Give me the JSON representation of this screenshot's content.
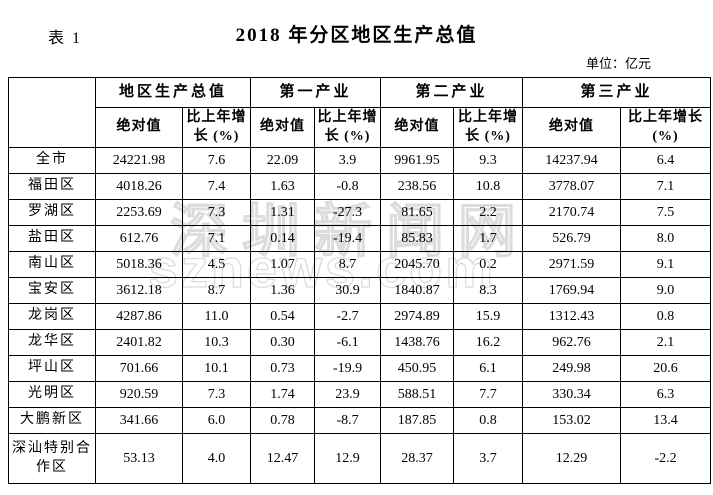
{
  "page": {
    "table_label": "表 1",
    "title": "2018 年分区地区生产总值",
    "unit_note": "单位：亿元"
  },
  "watermark": {
    "line1": "深圳新闻网",
    "line2": "sznews.com"
  },
  "chart_data": {
    "type": "table",
    "title": "2018 年分区地区生产总值",
    "unit": "亿元",
    "corner_header": "",
    "column_groups": [
      "地区生产总值",
      "第一产业",
      "第二产业",
      "第三产业"
    ],
    "sub_headers": [
      "绝对值",
      "比上年增长 (%)"
    ],
    "rows": [
      {
        "region": "全市",
        "values": [
          "24221.98",
          "7.6",
          "22.09",
          "3.9",
          "9961.95",
          "9.3",
          "14237.94",
          "6.4"
        ]
      },
      {
        "region": "福田区",
        "values": [
          "4018.26",
          "7.4",
          "1.63",
          "-0.8",
          "238.56",
          "10.8",
          "3778.07",
          "7.1"
        ]
      },
      {
        "region": "罗湖区",
        "values": [
          "2253.69",
          "7.3",
          "1.31",
          "-27.3",
          "81.65",
          "2.2",
          "2170.74",
          "7.5"
        ]
      },
      {
        "region": "盐田区",
        "values": [
          "612.76",
          "7.1",
          "0.14",
          "-19.4",
          "85.83",
          "1.7",
          "526.79",
          "8.0"
        ]
      },
      {
        "region": "南山区",
        "values": [
          "5018.36",
          "4.5",
          "1.07",
          "8.7",
          "2045.70",
          "0.2",
          "2971.59",
          "9.1"
        ]
      },
      {
        "region": "宝安区",
        "values": [
          "3612.18",
          "8.7",
          "1.36",
          "30.9",
          "1840.87",
          "8.3",
          "1769.94",
          "9.0"
        ]
      },
      {
        "region": "龙岗区",
        "values": [
          "4287.86",
          "11.0",
          "0.54",
          "-2.7",
          "2974.89",
          "15.9",
          "1312.43",
          "0.8"
        ]
      },
      {
        "region": "龙华区",
        "values": [
          "2401.82",
          "10.3",
          "0.30",
          "-6.1",
          "1438.76",
          "16.2",
          "962.76",
          "2.1"
        ]
      },
      {
        "region": "坪山区",
        "values": [
          "701.66",
          "10.1",
          "0.73",
          "-19.9",
          "450.95",
          "6.1",
          "249.98",
          "20.6"
        ]
      },
      {
        "region": "光明区",
        "values": [
          "920.59",
          "7.3",
          "1.74",
          "23.9",
          "588.51",
          "7.7",
          "330.34",
          "6.3"
        ]
      },
      {
        "region": "大鹏新区",
        "values": [
          "341.66",
          "6.0",
          "0.78",
          "-8.7",
          "187.85",
          "0.8",
          "153.02",
          "13.4"
        ]
      },
      {
        "region": "深汕特别合作区",
        "values": [
          "53.13",
          "4.0",
          "12.47",
          "12.9",
          "28.37",
          "3.7",
          "12.29",
          "-2.2"
        ]
      }
    ]
  }
}
